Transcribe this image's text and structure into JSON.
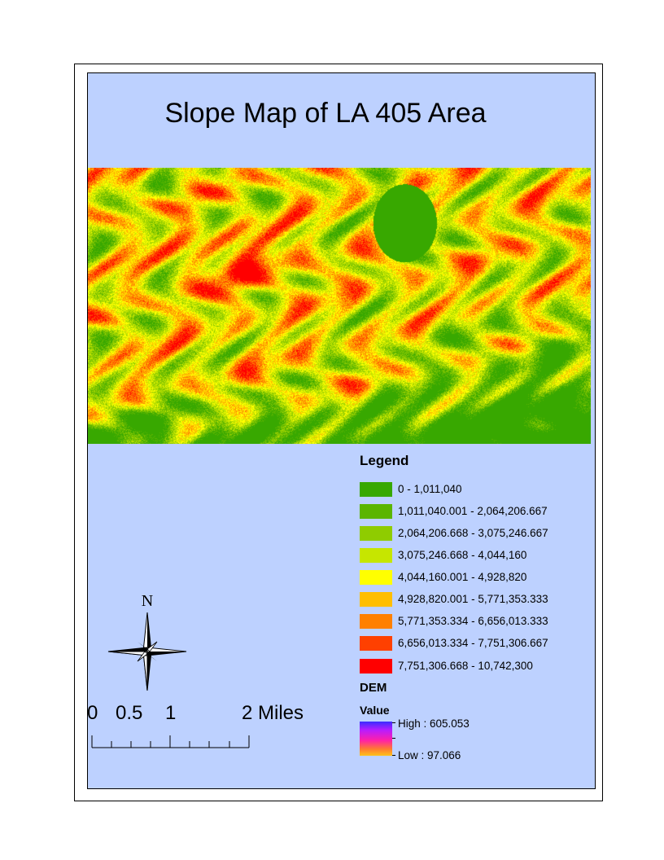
{
  "title": "Slope Map of LA 405 Area",
  "legend": {
    "title": "Legend",
    "classes": [
      {
        "label": "0 - 1,011,040",
        "color": "#38a800"
      },
      {
        "label": "1,011,040.001 - 2,064,206.667",
        "color": "#5bb500"
      },
      {
        "label": "2,064,206.668 - 3,075,246.667",
        "color": "#8fcc00"
      },
      {
        "label": "3,075,246.668 - 4,044,160",
        "color": "#c6e600"
      },
      {
        "label": "4,044,160.001 - 4,928,820",
        "color": "#ffff00"
      },
      {
        "label": "4,928,820.001 - 5,771,353.333",
        "color": "#ffbe00"
      },
      {
        "label": "5,771,353.334 - 6,656,013.333",
        "color": "#ff8000"
      },
      {
        "label": "6,656,013.334 - 7,751,306.667",
        "color": "#ff4000"
      },
      {
        "label": "7,751,306.668 - 10,742,300",
        "color": "#ff0000"
      }
    ]
  },
  "dem": {
    "title": "DEM",
    "subtitle": "Value",
    "high_label": "High : 605.053",
    "low_label": "Low : 97.066"
  },
  "north_arrow": {
    "label": "N"
  },
  "scale_bar": {
    "labels": [
      "0",
      "0.5",
      "1",
      "2 Miles"
    ]
  },
  "colors": {
    "map_background": "#bdd1ff",
    "frame": "#000000"
  }
}
